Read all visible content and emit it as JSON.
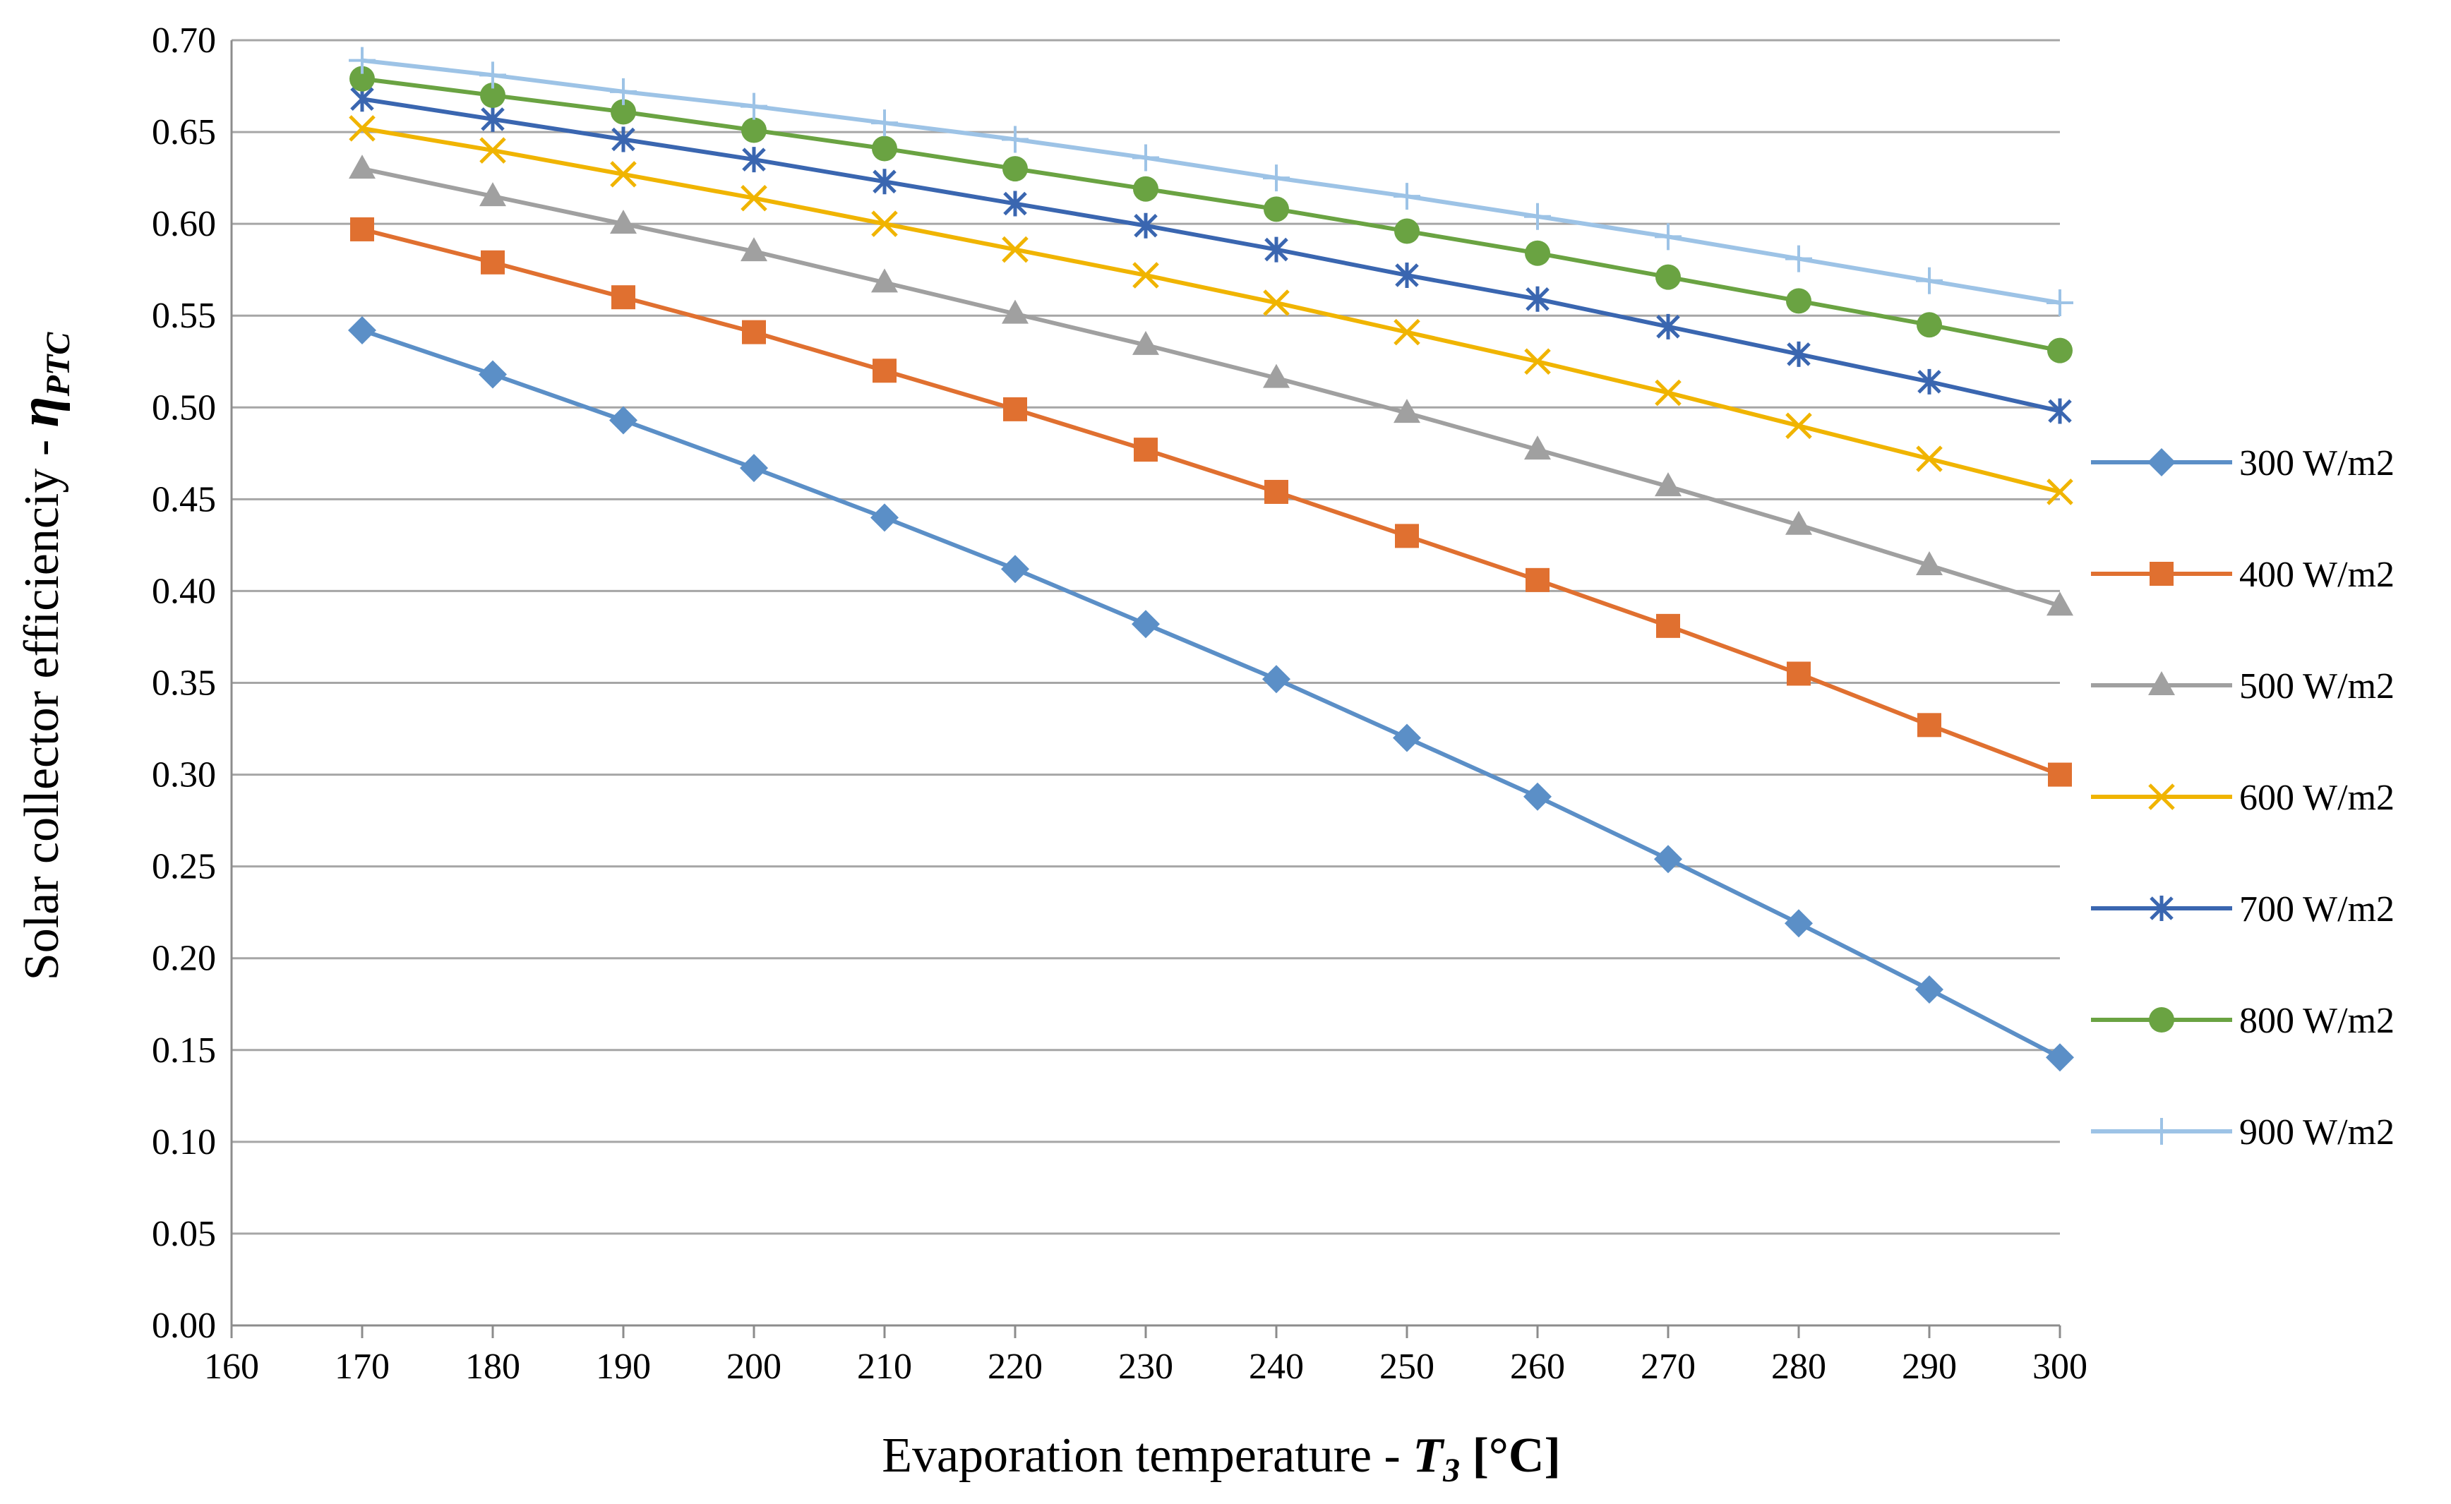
{
  "chart_data": {
    "type": "line",
    "title": "",
    "xlabel": {
      "prefix": "Evaporation temperature - ",
      "var": "T",
      "sub": "3",
      "unit": " [°C]"
    },
    "ylabel": {
      "prefix": "Solar collector efficienciy - ",
      "var": "η",
      "sub": "PTC"
    },
    "xlim": [
      160,
      300
    ],
    "ylim": [
      0,
      0.7
    ],
    "x_ticks": [
      "160",
      "170",
      "180",
      "190",
      "200",
      "210",
      "220",
      "230",
      "240",
      "250",
      "260",
      "270",
      "280",
      "290",
      "300"
    ],
    "y_ticks": [
      "0.00",
      "0.05",
      "0.10",
      "0.15",
      "0.20",
      "0.25",
      "0.30",
      "0.35",
      "0.40",
      "0.45",
      "0.50",
      "0.55",
      "0.60",
      "0.65",
      "0.70"
    ],
    "grid": "horizontal",
    "legend_position": "right",
    "x": [
      170,
      180,
      190,
      200,
      210,
      220,
      230,
      240,
      250,
      260,
      270,
      280,
      290,
      300
    ],
    "series": [
      {
        "name": "300 W/m2",
        "marker": "diamond",
        "color": "#5b8fc7",
        "values": [
          0.542,
          0.518,
          0.493,
          0.467,
          0.44,
          0.412,
          0.382,
          0.352,
          0.32,
          0.288,
          0.254,
          0.219,
          0.183,
          0.146
        ]
      },
      {
        "name": "400 W/m2",
        "marker": "square",
        "color": "#e07030",
        "values": [
          0.597,
          0.579,
          0.56,
          0.541,
          0.52,
          0.499,
          0.477,
          0.454,
          0.43,
          0.406,
          0.381,
          0.355,
          0.327,
          0.3
        ]
      },
      {
        "name": "500 W/m2",
        "marker": "triangle",
        "color": "#a0a0a0",
        "values": [
          0.63,
          0.615,
          0.6,
          0.585,
          0.568,
          0.551,
          0.534,
          0.516,
          0.497,
          0.477,
          0.457,
          0.436,
          0.414,
          0.392
        ]
      },
      {
        "name": "600 W/m2",
        "marker": "x",
        "color": "#f0b400",
        "values": [
          0.652,
          0.64,
          0.627,
          0.614,
          0.6,
          0.586,
          0.572,
          0.557,
          0.541,
          0.525,
          0.508,
          0.49,
          0.472,
          0.454
        ]
      },
      {
        "name": "700 W/m2",
        "marker": "asterisk",
        "color": "#3a66b0",
        "values": [
          0.668,
          0.657,
          0.646,
          0.635,
          0.623,
          0.611,
          0.599,
          0.586,
          0.572,
          0.559,
          0.544,
          0.529,
          0.514,
          0.498
        ]
      },
      {
        "name": "800 W/m2",
        "marker": "circle",
        "color": "#6aa342",
        "values": [
          0.679,
          0.67,
          0.661,
          0.651,
          0.641,
          0.63,
          0.619,
          0.608,
          0.596,
          0.584,
          0.571,
          0.558,
          0.545,
          0.531
        ]
      },
      {
        "name": "900 W/m2",
        "marker": "plus",
        "color": "#9dc3e6",
        "values": [
          0.689,
          0.681,
          0.672,
          0.664,
          0.655,
          0.646,
          0.636,
          0.625,
          0.615,
          0.604,
          0.593,
          0.581,
          0.569,
          0.557
        ]
      }
    ]
  }
}
